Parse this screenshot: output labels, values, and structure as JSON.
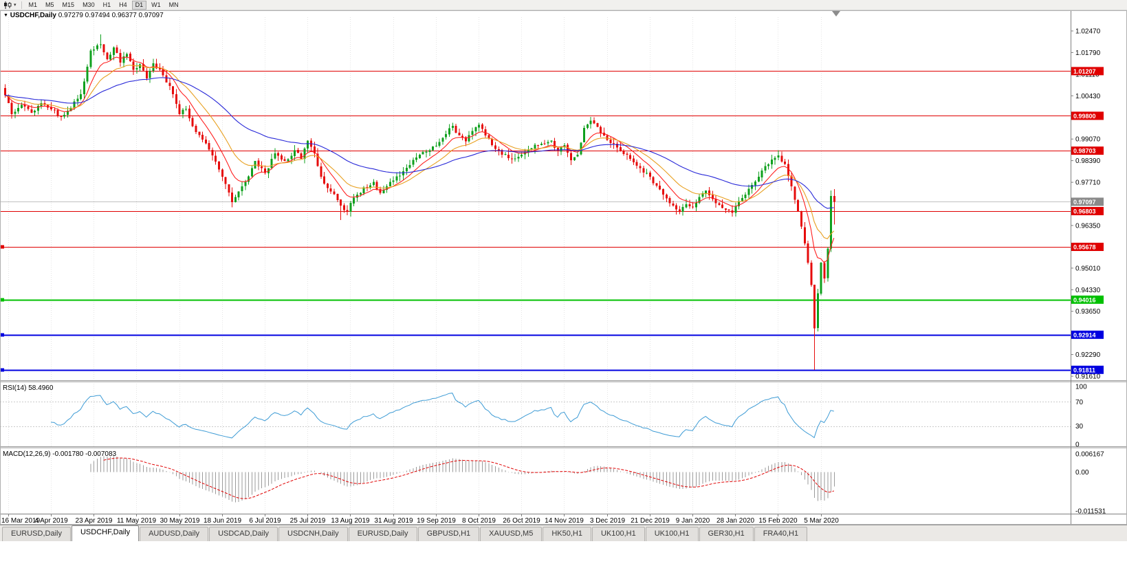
{
  "icons": {
    "collapse_glyph": "▼",
    "dropdown_glyph": "▾",
    "chart_type_icon": "candlestick-chart"
  },
  "toolbar": {
    "timeframes": [
      "M1",
      "M5",
      "M15",
      "M30",
      "H1",
      "H4",
      "D1",
      "W1",
      "MN"
    ],
    "active_timeframe": "D1"
  },
  "chart": {
    "symbol_label": "USDCHF,Daily",
    "ohlc_values": "0.97279  0.97494  0.96377  0.97097",
    "rsi_label": "RSI(14)",
    "rsi_value": "58.4960",
    "macd_label": "MACD(12,26,9)",
    "macd_value": "-0.001780 -0.007083"
  },
  "chart_data": {
    "type": "candlestick",
    "symbol": "USDCHF",
    "timeframe": "Daily",
    "last_candle": {
      "open": 0.97279,
      "high": 0.97494,
      "low": 0.96377,
      "close": 0.97097
    },
    "visible_price_range": [
      0.9161,
      1.0247
    ],
    "candle_count": 253,
    "candles_per_tick": 13,
    "x_tick_labels": [
      "16 Mar 2019",
      "4 Apr 2019",
      "23 Apr 2019",
      "11 May 2019",
      "30 May 2019",
      "18 Jun 2019",
      "6 Jul 2019",
      "25 Jul 2019",
      "13 Aug 2019",
      "31 Aug 2019",
      "19 Sep 2019",
      "8 Oct 2019",
      "26 Oct 2019",
      "14 Nov 2019",
      "3 Dec 2019",
      "21 Dec 2019",
      "9 Jan 2020",
      "28 Jan 2020",
      "15 Feb 2020",
      "5 Mar 2020"
    ],
    "y_axis_ticks": [
      "1.02470",
      "1.01790",
      "1.01110",
      "1.00430",
      "0.99070",
      "0.98390",
      "0.97710",
      "0.96350",
      "0.95010",
      "0.94330",
      "0.93650",
      "0.92290",
      "0.91610"
    ],
    "close_anchors": [
      [
        0,
        1.0045
      ],
      [
        2,
        0.9985
      ],
      [
        5,
        1.0015
      ],
      [
        8,
        0.999
      ],
      [
        11,
        1.002
      ],
      [
        14,
        1.0
      ],
      [
        17,
        0.9978
      ],
      [
        20,
        1.0005
      ],
      [
        23,
        1.0048
      ],
      [
        26,
        1.0185
      ],
      [
        29,
        1.0205
      ],
      [
        31,
        1.0158
      ],
      [
        33,
        1.0195
      ],
      [
        35,
        1.0148
      ],
      [
        37,
        1.0175
      ],
      [
        39,
        1.0125
      ],
      [
        41,
        1.0142
      ],
      [
        43,
        1.0098
      ],
      [
        45,
        1.0145
      ],
      [
        48,
        1.0108
      ],
      [
        51,
        1.0048
      ],
      [
        53,
        0.9985
      ],
      [
        55,
        1.0002
      ],
      [
        57,
        0.9948
      ],
      [
        60,
        0.9905
      ],
      [
        63,
        0.9855
      ],
      [
        66,
        0.9788
      ],
      [
        69,
        0.9708
      ],
      [
        71,
        0.9742
      ],
      [
        73,
        0.9772
      ],
      [
        76,
        0.9838
      ],
      [
        79,
        0.98
      ],
      [
        82,
        0.9862
      ],
      [
        85,
        0.9838
      ],
      [
        88,
        0.9872
      ],
      [
        90,
        0.9845
      ],
      [
        92,
        0.9902
      ],
      [
        94,
        0.9862
      ],
      [
        96,
        0.9788
      ],
      [
        99,
        0.9742
      ],
      [
        102,
        0.9698
      ],
      [
        104,
        0.968
      ],
      [
        106,
        0.9722
      ],
      [
        109,
        0.9755
      ],
      [
        112,
        0.9772
      ],
      [
        114,
        0.9738
      ],
      [
        117,
        0.9772
      ],
      [
        120,
        0.9792
      ],
      [
        123,
        0.9825
      ],
      [
        126,
        0.9858
      ],
      [
        129,
        0.9872
      ],
      [
        132,
        0.9898
      ],
      [
        134,
        0.9922
      ],
      [
        136,
        0.9948
      ],
      [
        138,
        0.9918
      ],
      [
        140,
        0.99
      ],
      [
        142,
        0.9932
      ],
      [
        144,
        0.9952
      ],
      [
        146,
        0.9918
      ],
      [
        148,
        0.9888
      ],
      [
        151,
        0.9858
      ],
      [
        154,
        0.9845
      ],
      [
        157,
        0.9858
      ],
      [
        160,
        0.9878
      ],
      [
        163,
        0.9892
      ],
      [
        166,
        0.9902
      ],
      [
        168,
        0.9868
      ],
      [
        170,
        0.9888
      ],
      [
        172,
        0.984
      ],
      [
        174,
        0.9858
      ],
      [
        176,
        0.9942
      ],
      [
        178,
        0.9965
      ],
      [
        180,
        0.9945
      ],
      [
        182,
        0.9918
      ],
      [
        184,
        0.9895
      ],
      [
        187,
        0.9868
      ],
      [
        190,
        0.9845
      ],
      [
        193,
        0.9815
      ],
      [
        196,
        0.9788
      ],
      [
        199,
        0.9748
      ],
      [
        202,
        0.9705
      ],
      [
        205,
        0.968
      ],
      [
        207,
        0.9702
      ],
      [
        209,
        0.9692
      ],
      [
        211,
        0.9725
      ],
      [
        213,
        0.9745
      ],
      [
        215,
        0.9718
      ],
      [
        217,
        0.97
      ],
      [
        219,
        0.9685
      ],
      [
        221,
        0.9675
      ],
      [
        223,
        0.9712
      ],
      [
        225,
        0.9732
      ],
      [
        227,
        0.9762
      ],
      [
        229,
        0.9788
      ],
      [
        231,
        0.9822
      ],
      [
        233,
        0.9842
      ],
      [
        235,
        0.9856
      ],
      [
        237,
        0.9828
      ],
      [
        239,
        0.9758
      ],
      [
        241,
        0.9678
      ],
      [
        243,
        0.9578
      ],
      [
        244,
        0.9518
      ],
      [
        245,
        0.9448
      ],
      [
        246,
        0.9312
      ],
      [
        247,
        0.9422
      ],
      [
        248,
        0.9518
      ],
      [
        249,
        0.9468
      ],
      [
        250,
        0.9562
      ],
      [
        251,
        0.9728
      ],
      [
        252,
        0.97097
      ]
    ],
    "overrides": {
      "0": {
        "o": 1.0068
      },
      "29": {
        "h": 1.0236
      },
      "102": {
        "l": 0.9652
      },
      "246": {
        "l": 0.9181
      },
      "252": {
        "o": 0.97279,
        "h": 0.97494,
        "l": 0.96377,
        "c": 0.97097
      }
    },
    "levels": [
      {
        "label": "1.01207",
        "value": 1.01207,
        "color": "#e00000",
        "width": 1,
        "marker": false
      },
      {
        "label": "0.99800",
        "value": 0.998,
        "color": "#e00000",
        "width": 1,
        "marker": false
      },
      {
        "label": "0.98703",
        "value": 0.98703,
        "color": "#e00000",
        "width": 1,
        "marker": false
      },
      {
        "label": "0.96803",
        "value": 0.96803,
        "color": "#e00000",
        "width": 1,
        "marker": false
      },
      {
        "label": "0.95678",
        "value": 0.95678,
        "color": "#e00000",
        "width": 1,
        "marker": true
      },
      {
        "label": "0.94016",
        "value": 0.94016,
        "color": "#00c000",
        "width": 2,
        "marker": true
      },
      {
        "label": "0.92914",
        "value": 0.92914,
        "color": "#0000e0",
        "width": 2,
        "marker": true
      },
      {
        "label": "0.91811",
        "value": 0.91811,
        "color": "#0000e0",
        "width": 2,
        "marker": true
      }
    ],
    "current_price": {
      "label": "0.97097",
      "value": 0.97097,
      "line_color": "#c0c0c0",
      "label_bg": "#8a8a8a"
    },
    "ma_settings": [
      {
        "period": 9,
        "color": "#ff2020"
      },
      {
        "period": 18,
        "color": "#e8a020"
      },
      {
        "period": 50,
        "color": "#2828d8"
      }
    ],
    "indicators": {
      "rsi": {
        "period": 14,
        "color": "#3d9bd5",
        "last": 58.496,
        "level_lines": [
          70,
          30
        ],
        "axis": [
          [
            "100",
            100
          ],
          [
            "70",
            70
          ],
          [
            "30",
            30
          ],
          [
            "0",
            0
          ]
        ]
      },
      "macd": {
        "fast": 12,
        "slow": 26,
        "signal": 9,
        "last_main": -0.00178,
        "last_signal": -0.007083,
        "hist_color": "#9a9a9a",
        "signal_color": "#e00000",
        "axis": [
          [
            "0.006167",
            0.006167
          ],
          [
            "0.00",
            0
          ],
          [
            "-0.011531",
            -0.011531
          ]
        ],
        "axis_max": 0.006167,
        "axis_min": -0.011531
      }
    },
    "colors": {
      "up": "#0fa01e",
      "down": "#e60b0b",
      "bg": "#ffffff",
      "grid": "#e4e4e4",
      "axis_text": "#000000"
    }
  },
  "tabs": {
    "items": [
      "EURUSD,Daily",
      "USDCHF,Daily",
      "AUDUSD,Daily",
      "USDCAD,Daily",
      "USDCNH,Daily",
      "EURUSD,Daily",
      "GBPUSD,H1",
      "XAUUSD,M5",
      "HK50,H1",
      "UK100,H1",
      "UK100,H1",
      "GER30,H1",
      "FRA40,H1"
    ],
    "active_index": 1
  }
}
